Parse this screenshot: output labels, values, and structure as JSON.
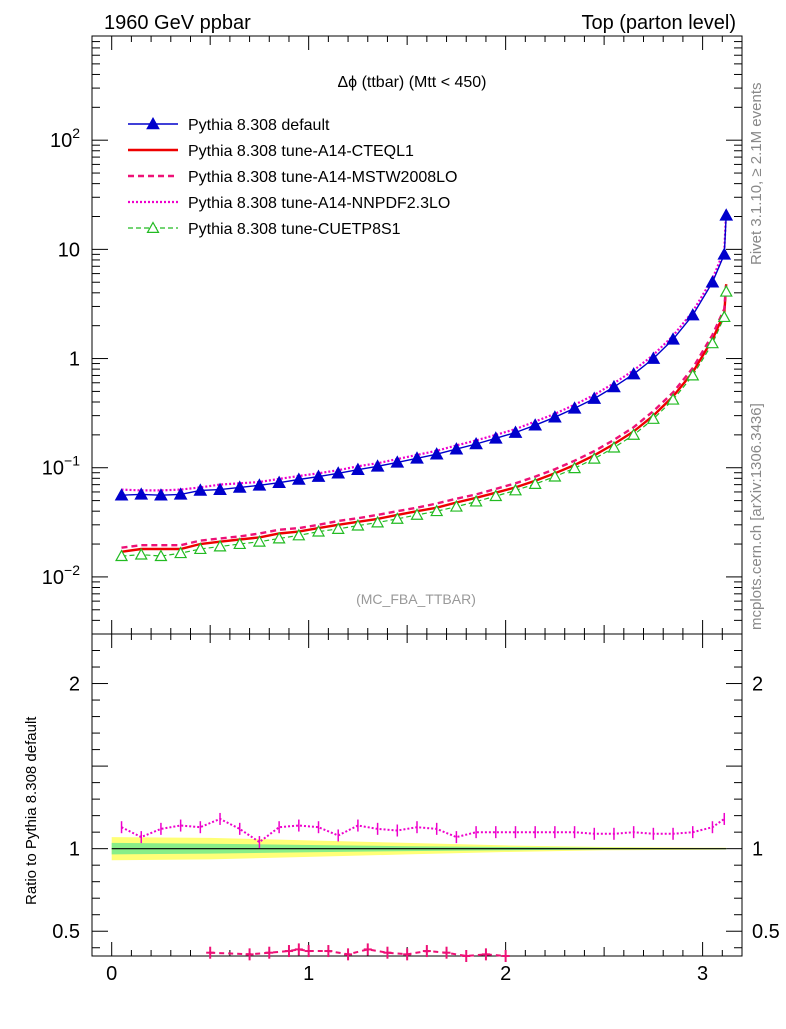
{
  "header": {
    "left": "1960 GeV ppbar",
    "right": "Top (parton level)"
  },
  "side": {
    "rivet": "Rivet 3.1.10, ≥ 2.1M events",
    "mcplots": "mcplots.cern.ch [arXiv:1306.3436]"
  },
  "plot_title": "Δϕ (ttbar) (Mtt < 450)",
  "analysis_tag": "(MC_FBA_TTBAR)",
  "ratio_ylabel": "Ratio to Pythia 8.308 default",
  "colors": {
    "default": "#0000cc",
    "cteql1": "#ee0000",
    "mstw": "#ee1177",
    "nnpdf": "#ee00cc",
    "cuetp8s1": "#22bb22",
    "band_yellow": "#ffff77",
    "band_green": "#88ee88"
  },
  "chart_data": [
    {
      "type": "line",
      "yscale": "log",
      "xlim": [
        -0.1,
        3.2
      ],
      "ylim": [
        0.003,
        900
      ],
      "y_ticks": [
        {
          "v": 0.01,
          "base": "10",
          "exp": "−2"
        },
        {
          "v": 0.1,
          "base": "10",
          "exp": "−1"
        },
        {
          "v": 1,
          "base": "1",
          "exp": ""
        },
        {
          "v": 10,
          "base": "10",
          "exp": ""
        },
        {
          "v": 100,
          "base": "10",
          "exp": "2"
        }
      ],
      "legend_placement": "top-left",
      "x": [
        0.05,
        0.15,
        0.25,
        0.35,
        0.45,
        0.55,
        0.65,
        0.75,
        0.85,
        0.95,
        1.05,
        1.15,
        1.25,
        1.35,
        1.45,
        1.55,
        1.65,
        1.75,
        1.85,
        1.95,
        2.05,
        2.15,
        2.25,
        2.35,
        2.45,
        2.55,
        2.65,
        2.75,
        2.85,
        2.95,
        3.05,
        3.11
      ],
      "series": [
        {
          "name": "Pythia 8.308 default",
          "key": "default",
          "marker": "triangle-filled",
          "values": [
            0.056,
            0.057,
            0.056,
            0.057,
            0.062,
            0.063,
            0.066,
            0.069,
            0.073,
            0.078,
            0.083,
            0.089,
            0.096,
            0.103,
            0.112,
            0.122,
            0.133,
            0.148,
            0.165,
            0.186,
            0.21,
            0.245,
            0.29,
            0.35,
            0.43,
            0.55,
            0.72,
            1.0,
            1.5,
            2.5,
            5.0,
            9.0
          ]
        },
        {
          "name": "Pythia 8.308 tune-A14-CTEQL1",
          "key": "cteql1",
          "marker": "none",
          "values": [
            0.017,
            0.018,
            0.018,
            0.018,
            0.02,
            0.021,
            0.022,
            0.023,
            0.025,
            0.026,
            0.028,
            0.03,
            0.032,
            0.034,
            0.037,
            0.04,
            0.043,
            0.048,
            0.053,
            0.059,
            0.066,
            0.076,
            0.089,
            0.106,
            0.13,
            0.165,
            0.215,
            0.3,
            0.45,
            0.75,
            1.5,
            2.6
          ]
        },
        {
          "name": "Pythia 8.308 tune-A14-MSTW2008LO",
          "key": "mstw",
          "marker": "none",
          "values": [
            0.0185,
            0.0195,
            0.0195,
            0.0195,
            0.0215,
            0.0225,
            0.0235,
            0.025,
            0.027,
            0.028,
            0.03,
            0.0325,
            0.0345,
            0.037,
            0.04,
            0.043,
            0.047,
            0.052,
            0.057,
            0.064,
            0.072,
            0.083,
            0.097,
            0.116,
            0.142,
            0.18,
            0.235,
            0.33,
            0.49,
            0.82,
            1.65,
            2.85
          ]
        },
        {
          "name": "Pythia 8.308 tune-A14-NNPDF2.3LO",
          "key": "nnpdf",
          "marker": "none",
          "values": [
            0.063,
            0.062,
            0.062,
            0.063,
            0.066,
            0.07,
            0.072,
            0.074,
            0.079,
            0.084,
            0.089,
            0.095,
            0.103,
            0.11,
            0.12,
            0.131,
            0.143,
            0.16,
            0.178,
            0.2,
            0.226,
            0.265,
            0.312,
            0.378,
            0.465,
            0.595,
            0.78,
            1.08,
            1.62,
            2.7,
            5.4,
            9.8
          ]
        },
        {
          "name": "Pythia 8.308 tune-CUETP8S1",
          "key": "cuetp8s1",
          "marker": "triangle-open",
          "values": [
            0.0155,
            0.016,
            0.0155,
            0.0165,
            0.018,
            0.019,
            0.02,
            0.021,
            0.0225,
            0.024,
            0.026,
            0.0275,
            0.0295,
            0.0315,
            0.034,
            0.037,
            0.04,
            0.044,
            0.049,
            0.055,
            0.062,
            0.071,
            0.083,
            0.099,
            0.121,
            0.153,
            0.2,
            0.28,
            0.42,
            0.7,
            1.38,
            2.4
          ]
        }
      ],
      "endpoint": {
        "x": 3.12,
        "values": {
          "default": 20.5,
          "cteql1": 4.8,
          "mstw": 5.0,
          "nnpdf": 23.0,
          "cuetp8s1": 4.1
        }
      }
    },
    {
      "type": "line",
      "xlim": [
        -0.1,
        3.2
      ],
      "ylim": [
        0.35,
        2.3
      ],
      "y_ticks": [
        {
          "v": 0.5,
          "label": "0.5"
        },
        {
          "v": 1,
          "label": "1"
        },
        {
          "v": 2,
          "label": "2"
        }
      ],
      "x_ticks": [
        {
          "v": 0,
          "label": "0"
        },
        {
          "v": 1,
          "label": "1"
        },
        {
          "v": 2,
          "label": "2"
        },
        {
          "v": 3,
          "label": "3"
        }
      ],
      "nnpdf_ratio": {
        "x": [
          0.05,
          0.15,
          0.25,
          0.35,
          0.45,
          0.55,
          0.65,
          0.75,
          0.85,
          0.95,
          1.05,
          1.15,
          1.25,
          1.35,
          1.45,
          1.55,
          1.65,
          1.75,
          1.85,
          1.95,
          2.05,
          2.15,
          2.25,
          2.35,
          2.45,
          2.55,
          2.65,
          2.75,
          2.85,
          2.95,
          3.05,
          3.11
        ],
        "values": [
          1.13,
          1.07,
          1.12,
          1.14,
          1.13,
          1.18,
          1.12,
          1.04,
          1.13,
          1.14,
          1.13,
          1.08,
          1.14,
          1.12,
          1.11,
          1.13,
          1.12,
          1.07,
          1.1,
          1.1,
          1.1,
          1.1,
          1.1,
          1.1,
          1.09,
          1.09,
          1.1,
          1.09,
          1.09,
          1.1,
          1.13,
          1.18
        ]
      },
      "low_ratio": {
        "x": [
          0.5,
          0.7,
          0.8,
          0.9,
          0.95,
          1.0,
          1.1,
          1.2,
          1.3,
          1.4,
          1.5,
          1.6,
          1.7,
          1.8,
          1.9,
          2.0
        ],
        "values": [
          0.37,
          0.36,
          0.37,
          0.38,
          0.39,
          0.38,
          0.38,
          0.36,
          0.39,
          0.37,
          0.36,
          0.38,
          0.37,
          0.35,
          0.36,
          0.35
        ]
      },
      "band": {
        "x": [
          0.0,
          0.5,
          1.0,
          1.5,
          2.0,
          2.5,
          3.0,
          3.12
        ],
        "yellow_half": [
          0.07,
          0.065,
          0.05,
          0.035,
          0.02,
          0.01,
          0.006,
          0.005
        ],
        "green_half": [
          0.035,
          0.03,
          0.022,
          0.015,
          0.01,
          0.005,
          0.003,
          0.003
        ]
      }
    }
  ]
}
